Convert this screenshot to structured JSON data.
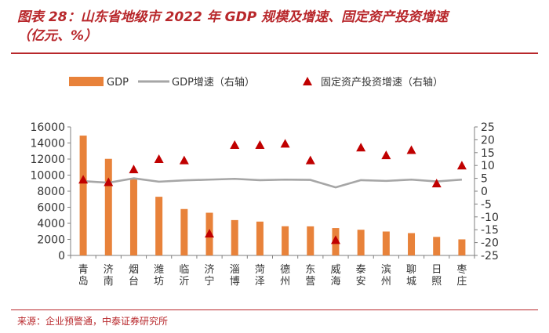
{
  "figure": {
    "title_line1": "图表 28：山东省地级市 2022 年 GDP 规模及增速、固定资产投资增速",
    "title_line2": "（亿元、%）",
    "source": "来源：企业预警通，中泰证券研究所"
  },
  "chart_data": {
    "type": "bar",
    "categories": [
      "青岛",
      "济南",
      "烟台",
      "潍坊",
      "临沂",
      "济宁",
      "淄博",
      "菏泽",
      "德州",
      "东营",
      "威海",
      "泰安",
      "滨州",
      "聊城",
      "日照",
      "枣庄"
    ],
    "series": [
      {
        "name": "GDP",
        "kind": "bar",
        "axis": "left",
        "color": "#e8823a",
        "values": [
          14920,
          12027,
          9516,
          7306,
          5779,
          5316,
          4402,
          4213,
          3633,
          3620,
          3408,
          3199,
          2977,
          2780,
          2307,
          2002
        ]
      },
      {
        "name": "GDP增速（右轴）",
        "kind": "line",
        "axis": "right",
        "color": "#a6a6a6",
        "values": [
          3.9,
          3.3,
          5.0,
          3.7,
          4.2,
          4.5,
          4.8,
          4.3,
          4.5,
          4.4,
          1.5,
          4.3,
          4.0,
          4.5,
          3.8,
          4.5
        ]
      },
      {
        "name": "固定资产投资增速（右轴）",
        "kind": "marker",
        "axis": "right",
        "color": "#c00000",
        "values": [
          4.5,
          3.5,
          8.5,
          12.5,
          12.0,
          -16.5,
          18.0,
          18.0,
          18.5,
          12.0,
          -19.0,
          17.0,
          14.0,
          16.0,
          3.0,
          10.0
        ]
      }
    ],
    "y_left": {
      "min": 0,
      "max": 16000,
      "ticks": [
        "0",
        "2000",
        "4000",
        "6000",
        "8000",
        "10000",
        "12000",
        "14000",
        "16000"
      ]
    },
    "y_right": {
      "min": -25,
      "max": 25,
      "ticks": [
        "25",
        "20",
        "15",
        "10",
        "5",
        "0",
        "-5",
        "-10",
        "-15",
        "-20",
        "-25"
      ]
    },
    "legend_position": "top",
    "grid": false
  }
}
